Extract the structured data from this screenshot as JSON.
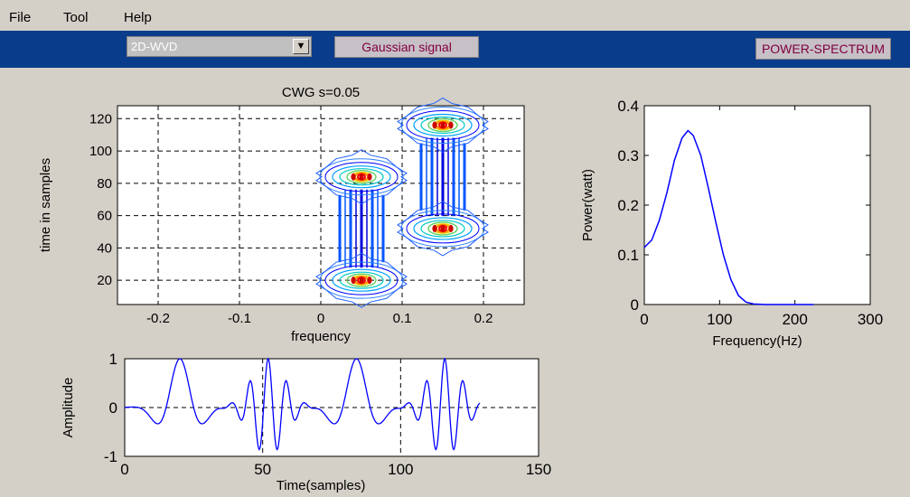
{
  "menu": {
    "items": [
      "File",
      "Tool",
      "Help"
    ]
  },
  "toolbar": {
    "select_value": "2D-WVD",
    "signal_button": "Gaussian signal",
    "spectrum_button": "POWER-SPECTRUM"
  },
  "colors": {
    "toolbar_bg": "#0a3c8c",
    "plot_line": "#0000ff",
    "background": "#d4d0c8"
  },
  "chart_data": [
    {
      "type": "contour",
      "title": "CWG s=0.05",
      "xlabel": "frequency",
      "ylabel": "time in samples",
      "xlim": [
        -0.25,
        0.25
      ],
      "ylim": [
        5,
        128
      ],
      "xticks": [
        -0.2,
        -0.1,
        0,
        0.1,
        0.2
      ],
      "xtick_labels": [
        "-0.2",
        "-0.1",
        "0",
        "0.1",
        "0.2"
      ],
      "yticks": [
        20,
        40,
        60,
        80,
        100,
        120
      ],
      "ytick_labels": [
        "20",
        "40",
        "60",
        "80",
        "100",
        "120"
      ],
      "grid": true,
      "components": [
        {
          "freq": 0.05,
          "time": 20
        },
        {
          "freq": 0.05,
          "time": 84
        },
        {
          "freq": 0.15,
          "time": 52
        },
        {
          "freq": 0.15,
          "time": 116
        }
      ]
    },
    {
      "type": "line",
      "xlabel": "Frequency(Hz)",
      "ylabel": "Power(watt)",
      "xlim": [
        0,
        300
      ],
      "ylim": [
        0,
        0.4
      ],
      "xticks": [
        0,
        100,
        200,
        300
      ],
      "xtick_labels": [
        "0",
        "100",
        "200",
        "300"
      ],
      "yticks": [
        0,
        0.1,
        0.2,
        0.3,
        0.4
      ],
      "ytick_labels": [
        "0",
        "0.1",
        "0.2",
        "0.3",
        "0.4"
      ],
      "grid": false,
      "peak": {
        "x": 58,
        "y": 0.35
      },
      "series": [
        {
          "x": [
            0,
            10,
            20,
            30,
            40,
            50,
            58,
            65,
            75,
            85,
            95,
            105,
            115,
            125,
            135,
            145,
            160,
            180,
            200,
            225
          ],
          "y": [
            0.115,
            0.13,
            0.17,
            0.225,
            0.29,
            0.335,
            0.35,
            0.34,
            0.3,
            0.235,
            0.165,
            0.1,
            0.05,
            0.018,
            0.005,
            0.001,
            0.0,
            0.0,
            0.0,
            0.0
          ]
        }
      ]
    },
    {
      "type": "line",
      "xlabel": "Time(samples)",
      "ylabel": "Amplitude",
      "xlim": [
        0,
        150
      ],
      "ylim": [
        -1,
        1
      ],
      "xticks": [
        0,
        50,
        100,
        150
      ],
      "xtick_labels": [
        "0",
        "50",
        "100",
        "150"
      ],
      "yticks": [
        -1,
        0,
        1
      ],
      "ytick_labels": [
        "-1",
        "0",
        "1"
      ],
      "grid": true,
      "bursts": [
        {
          "center": 20,
          "freq": 0.05,
          "sigma": 6
        },
        {
          "center": 52,
          "freq": 0.15,
          "sigma": 6
        },
        {
          "center": 84,
          "freq": 0.05,
          "sigma": 6
        },
        {
          "center": 116,
          "freq": 0.15,
          "sigma": 6
        }
      ],
      "samples": 129
    }
  ]
}
